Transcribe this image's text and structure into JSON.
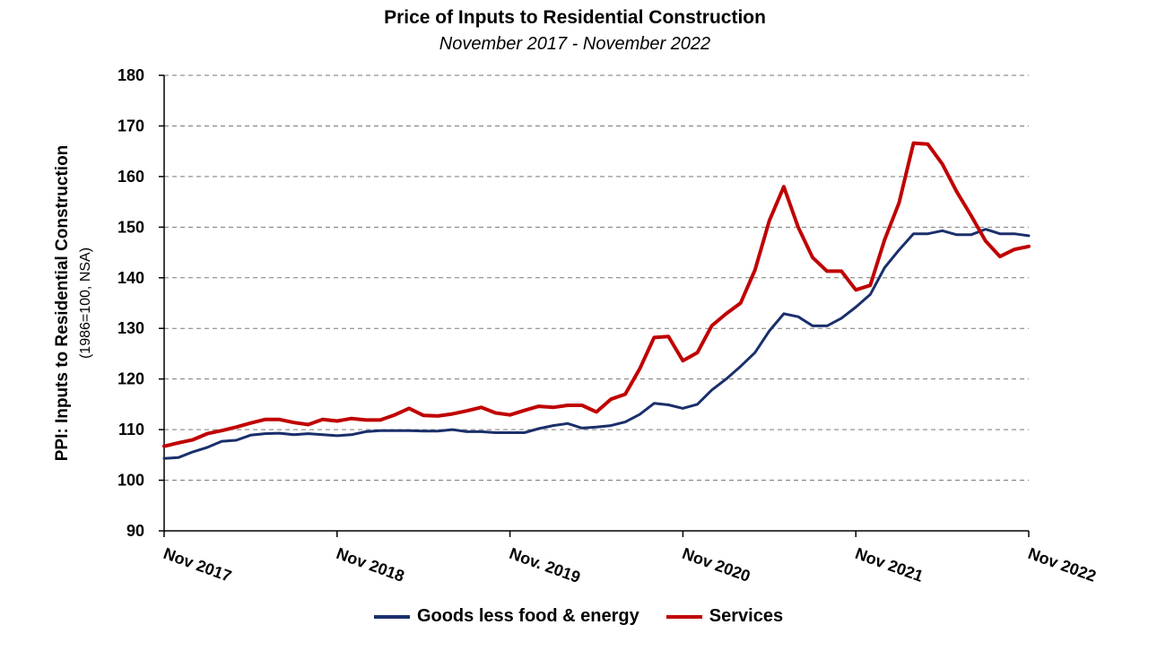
{
  "chart_data": {
    "type": "line",
    "title": "Price of Inputs to Residential Construction",
    "subtitle": "November 2017 - November 2022",
    "ylabel": "PPI: Inputs to Residential Construction",
    "ylabel2": "(1986=100, NSA)",
    "xlabel": "",
    "ylim": [
      90,
      180
    ],
    "yticks": [
      90,
      100,
      110,
      120,
      130,
      140,
      150,
      160,
      170,
      180
    ],
    "x_ticks": [
      {
        "label": "Nov 2017",
        "x": 0
      },
      {
        "label": "Nov 2018",
        "x": 12
      },
      {
        "label": "Nov. 2019",
        "x": 24
      },
      {
        "label": "Nov 2020",
        "x": 36
      },
      {
        "label": "Nov 2021",
        "x": 48
      },
      {
        "label": "Nov 2022",
        "x": 60
      }
    ],
    "grid": true,
    "legend_position": "bottom",
    "series": [
      {
        "name": "Goods less food & energy",
        "color": "#1a2f6b",
        "values": [
          104.3,
          104.5,
          105.6,
          106.5,
          107.7,
          107.9,
          108.9,
          109.2,
          109.3,
          109.0,
          109.2,
          109.0,
          108.8,
          109.0,
          109.6,
          109.8,
          109.8,
          109.8,
          109.7,
          109.7,
          110.0,
          109.6,
          109.6,
          109.4,
          109.4,
          109.4,
          110.2,
          110.8,
          111.2,
          110.3,
          110.5,
          110.8,
          111.5,
          113.0,
          115.2,
          114.9,
          114.2,
          115.0,
          117.8,
          120.0,
          122.5,
          125.2,
          129.5,
          132.9,
          132.3,
          130.5,
          130.5,
          132.0,
          134.2,
          136.7,
          142.0,
          145.5,
          148.7,
          148.7,
          149.3,
          148.5,
          148.5,
          149.6,
          148.7,
          148.7,
          148.3
        ]
      },
      {
        "name": "Services",
        "color": "#c00000",
        "values": [
          106.7,
          107.4,
          108.0,
          109.2,
          109.8,
          110.5,
          111.3,
          112.0,
          112.0,
          111.4,
          111.0,
          112.0,
          111.7,
          112.2,
          111.9,
          111.9,
          112.9,
          114.2,
          112.8,
          112.7,
          113.1,
          113.7,
          114.4,
          113.3,
          112.9,
          113.8,
          114.6,
          114.4,
          114.8,
          114.8,
          113.5,
          116.0,
          117.0,
          122.0,
          128.2,
          128.4,
          123.6,
          125.2,
          130.5,
          132.9,
          135.0,
          141.5,
          151.3,
          158.0,
          150.0,
          144.0,
          141.3,
          141.3,
          137.6,
          138.5,
          147.5,
          154.8,
          166.6,
          166.4,
          162.5,
          157.0,
          152.3,
          147.3,
          144.2,
          145.6,
          146.2
        ]
      }
    ]
  }
}
